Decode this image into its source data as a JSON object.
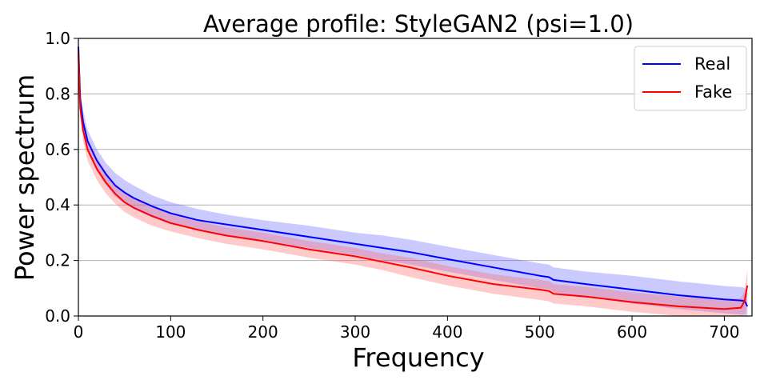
{
  "chart_data": {
    "type": "line",
    "title": "Average profile: StyleGAN2 (psi=1.0)",
    "xlabel": "Frequency",
    "ylabel": "Power spectrum",
    "xlim": [
      0,
      730
    ],
    "ylim": [
      0.0,
      1.0
    ],
    "xticks": [
      "0",
      "100",
      "200",
      "300",
      "400",
      "500",
      "600",
      "700"
    ],
    "yticks": [
      "0.0",
      "0.2",
      "0.4",
      "0.6",
      "0.8",
      "1.0"
    ],
    "grid": "horizontal",
    "legend": "top-right",
    "x": [
      0,
      2,
      5,
      10,
      20,
      30,
      40,
      50,
      60,
      80,
      100,
      130,
      160,
      200,
      250,
      300,
      330,
      360,
      400,
      450,
      500,
      510,
      515,
      550,
      600,
      650,
      700,
      718,
      722,
      725
    ],
    "series": [
      {
        "name": "Real",
        "color": "#0000ff",
        "band_color": "#6666ff",
        "values": [
          0.97,
          0.78,
          0.7,
          0.63,
          0.56,
          0.51,
          0.47,
          0.445,
          0.425,
          0.395,
          0.37,
          0.345,
          0.33,
          0.31,
          0.285,
          0.26,
          0.245,
          0.23,
          0.205,
          0.175,
          0.145,
          0.14,
          0.13,
          0.115,
          0.095,
          0.075,
          0.06,
          0.056,
          0.054,
          0.035
        ],
        "lower": [
          0.95,
          0.75,
          0.66,
          0.59,
          0.52,
          0.47,
          0.43,
          0.405,
          0.385,
          0.355,
          0.33,
          0.31,
          0.29,
          0.27,
          0.245,
          0.22,
          0.2,
          0.185,
          0.16,
          0.13,
          0.1,
          0.097,
          0.085,
          0.07,
          0.045,
          0.025,
          0.01,
          0.005,
          0.005,
          0.0
        ],
        "upper": [
          0.99,
          0.81,
          0.74,
          0.67,
          0.6,
          0.55,
          0.515,
          0.49,
          0.47,
          0.435,
          0.41,
          0.385,
          0.365,
          0.345,
          0.325,
          0.3,
          0.29,
          0.275,
          0.25,
          0.22,
          0.19,
          0.185,
          0.175,
          0.16,
          0.145,
          0.125,
          0.108,
          0.104,
          0.102,
          0.08
        ]
      },
      {
        "name": "Fake",
        "color": "#ff0000",
        "band_color": "#ff6666",
        "values": [
          0.95,
          0.75,
          0.67,
          0.6,
          0.53,
          0.48,
          0.44,
          0.41,
          0.39,
          0.36,
          0.335,
          0.31,
          0.29,
          0.27,
          0.24,
          0.215,
          0.195,
          0.175,
          0.145,
          0.115,
          0.095,
          0.09,
          0.08,
          0.07,
          0.05,
          0.035,
          0.025,
          0.03,
          0.055,
          0.11
        ],
        "lower": [
          0.93,
          0.72,
          0.63,
          0.56,
          0.49,
          0.44,
          0.405,
          0.375,
          0.355,
          0.325,
          0.305,
          0.28,
          0.26,
          0.24,
          0.21,
          0.185,
          0.165,
          0.14,
          0.11,
          0.08,
          0.058,
          0.053,
          0.045,
          0.035,
          0.015,
          0.0,
          0.0,
          0.0,
          0.0,
          0.04
        ],
        "upper": [
          0.97,
          0.78,
          0.71,
          0.64,
          0.57,
          0.52,
          0.475,
          0.445,
          0.425,
          0.395,
          0.365,
          0.34,
          0.32,
          0.3,
          0.27,
          0.245,
          0.225,
          0.21,
          0.18,
          0.15,
          0.13,
          0.125,
          0.115,
          0.105,
          0.085,
          0.07,
          0.06,
          0.065,
          0.09,
          0.17
        ]
      }
    ]
  }
}
